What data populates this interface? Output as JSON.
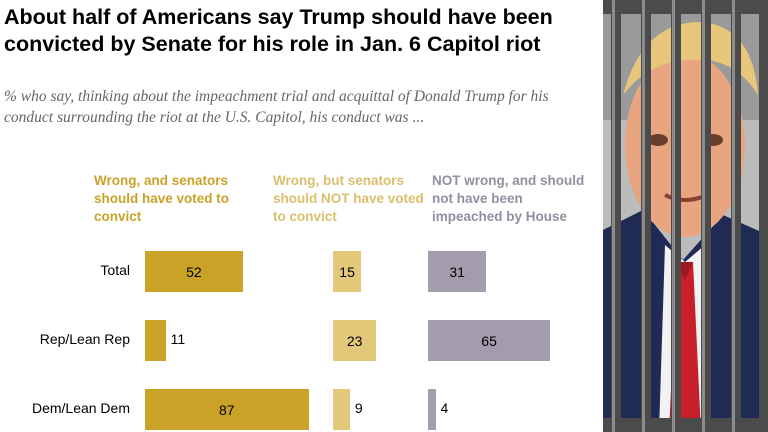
{
  "title": "About half of Americans say Trump should have been convicted by Senate for his role in Jan. 6 Capitol riot",
  "subtitle": "% who say, thinking about the impeachment trial and acquittal of Donald Trump for his conduct surrounding the riot at the U.S. Capitol, his conduct was ...",
  "colors": {
    "wrong_convict": "#c9a227",
    "wrong_not_convict": "#e3c87a",
    "not_wrong": "#a29cad",
    "header_convict": "#c9a227",
    "header_not_convict": "#dcbf6c",
    "header_not_wrong": "#948ea0"
  },
  "photo": {
    "description_icon": "trump-behind-bars-photo"
  },
  "chart_data": {
    "type": "bar",
    "categories": [
      "Total",
      "Rep/Lean Rep",
      "Dem/Lean Dem"
    ],
    "series": [
      {
        "name": "Wrong, and senators should have voted to convict",
        "values": [
          52,
          11,
          87
        ]
      },
      {
        "name": "Wrong, but senators should NOT have voted to convict",
        "values": [
          15,
          23,
          9
        ]
      },
      {
        "name": "NOT wrong, and should not have been impeached by House",
        "values": [
          31,
          65,
          4
        ]
      }
    ],
    "labels": {
      "series": [
        [
          "52",
          "11",
          "87"
        ],
        [
          "15",
          "23",
          "9"
        ],
        [
          "31",
          "65",
          "4"
        ]
      ]
    },
    "legend": "column headers above bars"
  }
}
